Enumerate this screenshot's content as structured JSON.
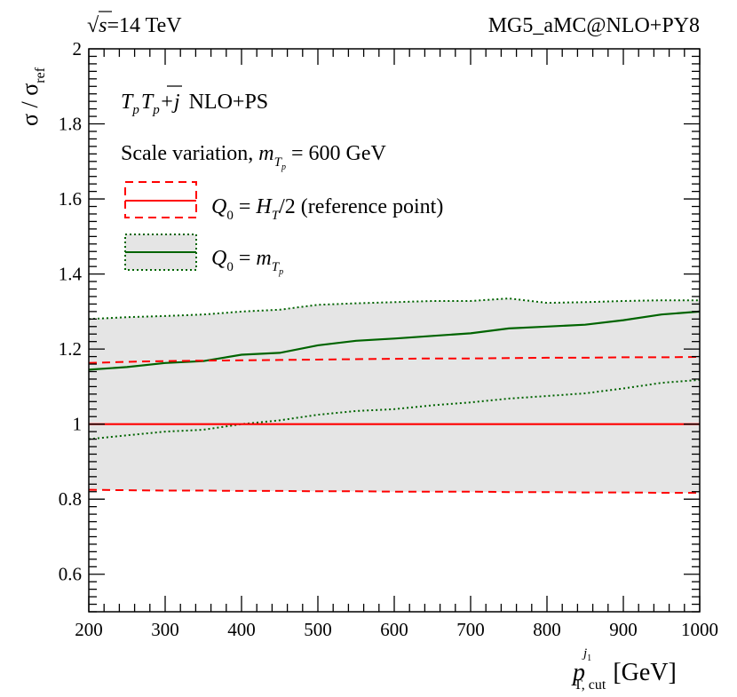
{
  "header": {
    "left_sqrt": "√",
    "left_s": "s",
    "left_rest": "=14 TeV",
    "right": "MG5_aMC@NLO+PY8"
  },
  "legend": {
    "process_T1": "T",
    "process_T1_sub": "p",
    "process_T2": "T",
    "process_T2_sub": "p",
    "process_j": "+j",
    "process_tag": "NLO+PS",
    "scale_text": "Scale variation,",
    "scale_m": "m",
    "scale_m_sub": "T",
    "scale_m_subsub": "p",
    "scale_value": "= 600 GeV",
    "entry1_Q": "Q",
    "entry1_Q_sub": "0",
    "entry1_eq": "= ",
    "entry1_H": "H",
    "entry1_H_sub": "T",
    "entry1_rest": "/2 (reference point)",
    "entry2_Q": "Q",
    "entry2_Q_sub": "0",
    "entry2_eq": "= ",
    "entry2_m": "m",
    "entry2_m_sub": "T",
    "entry2_m_subsub": "p"
  },
  "axes": {
    "y_sigma": "σ / σ",
    "y_sigma_sub": "ref",
    "x_p": "p",
    "x_p_sup": "j",
    "x_p_supsub": "1",
    "x_p_sub": "T, cut",
    "x_unit": "[GeV]"
  },
  "colors": {
    "reference": "#ff0000",
    "mtp": "#006400",
    "band": "#e5e5e5"
  },
  "chart_data": {
    "type": "line",
    "title": "",
    "xlabel": "p_T,cut^j1 [GeV]",
    "ylabel": "σ / σ_ref",
    "xlim": [
      200,
      1000
    ],
    "ylim": [
      0.5,
      2.0
    ],
    "x_ticks": [
      200,
      300,
      400,
      500,
      600,
      700,
      800,
      900,
      1000
    ],
    "x_tick_labels": [
      "200",
      "300",
      "400",
      "500",
      "600",
      "700",
      "800",
      "900",
      "1000"
    ],
    "y_ticks": [
      0.6,
      0.8,
      1.0,
      1.2,
      1.4,
      1.6,
      1.8,
      2.0
    ],
    "y_tick_labels": [
      "0.6",
      "0.8",
      "1",
      "1.2",
      "1.4",
      "1.6",
      "1.8",
      "2"
    ],
    "x": [
      200,
      250,
      300,
      350,
      400,
      450,
      500,
      550,
      600,
      650,
      700,
      750,
      800,
      850,
      900,
      950,
      1000
    ],
    "series": [
      {
        "name": "Q0 = HT/2 (reference point)",
        "central": [
          1.0,
          1.0,
          1.0,
          1.0,
          1.0,
          1.0,
          1.0,
          1.0,
          1.0,
          1.0,
          1.0,
          1.0,
          1.0,
          1.0,
          1.0,
          1.0,
          1.0
        ],
        "upper": [
          1.163,
          1.166,
          1.168,
          1.169,
          1.17,
          1.171,
          1.172,
          1.173,
          1.174,
          1.175,
          1.175,
          1.176,
          1.177,
          1.177,
          1.178,
          1.178,
          1.179
        ],
        "lower": [
          0.825,
          0.824,
          0.823,
          0.823,
          0.822,
          0.822,
          0.821,
          0.821,
          0.82,
          0.82,
          0.82,
          0.819,
          0.819,
          0.818,
          0.818,
          0.817,
          0.817
        ],
        "style": "solid line, dashed band edges"
      },
      {
        "name": "Q0 = m_Tp",
        "central": [
          1.145,
          1.152,
          1.163,
          1.168,
          1.185,
          1.19,
          1.21,
          1.222,
          1.228,
          1.235,
          1.242,
          1.255,
          1.26,
          1.265,
          1.277,
          1.292,
          1.3
        ],
        "upper": [
          1.28,
          1.285,
          1.288,
          1.292,
          1.3,
          1.305,
          1.318,
          1.322,
          1.325,
          1.328,
          1.328,
          1.335,
          1.323,
          1.325,
          1.328,
          1.33,
          1.33
        ],
        "lower": [
          0.96,
          0.97,
          0.98,
          0.985,
          1.0,
          1.01,
          1.025,
          1.035,
          1.04,
          1.05,
          1.058,
          1.068,
          1.075,
          1.082,
          1.095,
          1.11,
          1.118
        ],
        "style": "solid line, dotted band edges, grey filled band"
      }
    ],
    "legend_position": "top-left"
  }
}
